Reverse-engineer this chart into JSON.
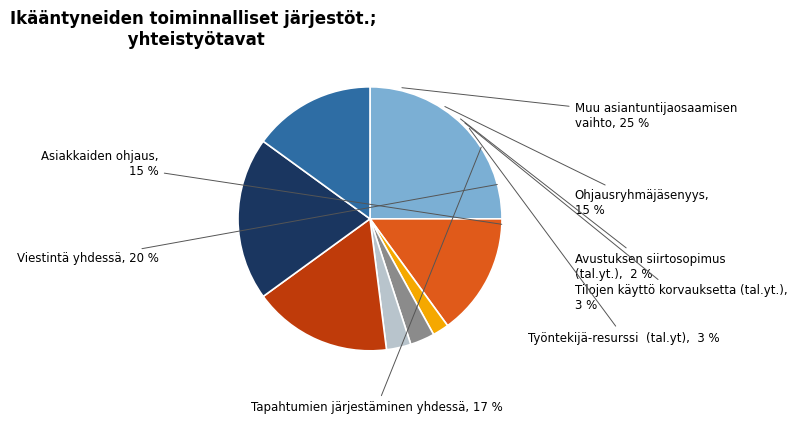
{
  "title": "Ikääntyneiden toiminnalliset järjestöt.;\n yhteistyötavat",
  "slices": [
    {
      "label": "Muu asiantuntijaosaamisen\nvaihto, 25 %",
      "value": 25,
      "color": "#7BAFD4"
    },
    {
      "label": "Ohjausryhmäjäsenyys,\n15 %",
      "value": 15,
      "color": "#E05A1A"
    },
    {
      "label": "Avustuksen siirtosopimus\n(tal.yt.),  2 %",
      "value": 2,
      "color": "#F5A800"
    },
    {
      "label": "Tilojen käyttö korvauksetta (tal.yt.),\n3 %",
      "value": 3,
      "color": "#8B8B8B"
    },
    {
      "label": "Työntekijä-resurssi  (tal.yt),  3 %",
      "value": 3,
      "color": "#B8C4CC"
    },
    {
      "label": "Tapahtumien järjestäminen yhdessä, 17 %",
      "value": 17,
      "color": "#BF3B0A"
    },
    {
      "label": "Viestintä yhdessä, 20 %",
      "value": 20,
      "color": "#1A3660"
    },
    {
      "label": "Asiakkaiden ohjaus,\n15 %",
      "value": 15,
      "color": "#2E6DA4"
    }
  ],
  "background_color": "#FFFFFF",
  "title_fontsize": 12,
  "label_fontsize": 8.5
}
